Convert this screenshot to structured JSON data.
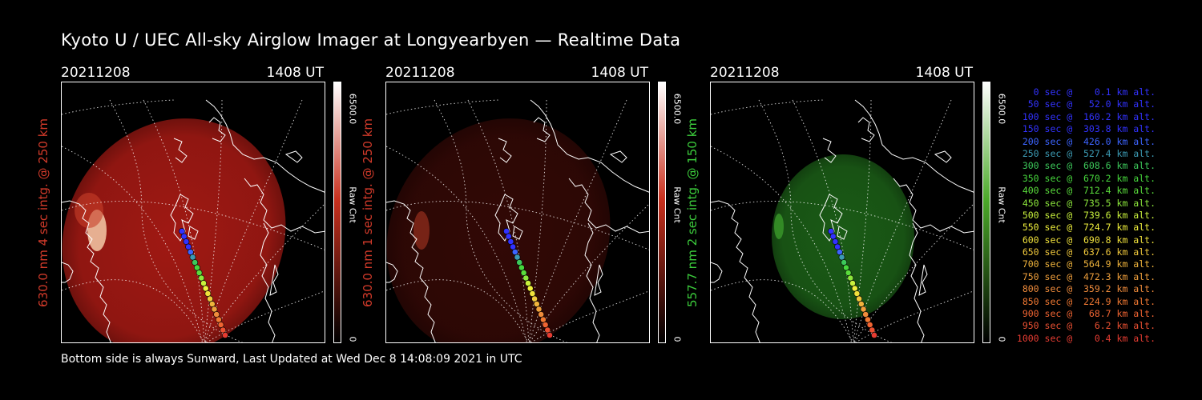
{
  "title": "Kyoto U / UEC All-sky Airglow Imager at Longyearbyen — Realtime Data",
  "footer": "Bottom side is always Sunward, Last Updated at Wed Dec  8 14:08:09 2021 in UTC",
  "panels": [
    {
      "date": "20211208",
      "time": "1408 UT",
      "ylabel": "630.0 nm 4 sec intg. @ 250 km",
      "color": "#d23a2a",
      "cbar_max": "6500.0",
      "cbar_min": "0",
      "cbar_unit": "Raw Cnt",
      "intensity": "strong",
      "glow_color": "#a81a14"
    },
    {
      "date": "20211208",
      "time": "1408 UT",
      "ylabel": "630.0 nm 1 sec intg. @ 250 km",
      "color": "#d23a2a",
      "cbar_max": "6500.0",
      "cbar_min": "0",
      "cbar_unit": "Raw Cnt",
      "intensity": "weak",
      "glow_color": "#5a0f0a"
    },
    {
      "date": "20211208",
      "time": "1408 UT",
      "ylabel": "557.7 nm 2 sec intg. @ 150 km",
      "color": "#3ccd3c",
      "cbar_max": "6500.0",
      "cbar_min": "0",
      "cbar_unit": "Raw Cnt",
      "intensity": "medium",
      "glow_color": "#1f6b1a"
    }
  ],
  "legend": [
    {
      "text": "   0 sec @    0.1 km alt.",
      "color": "#3232ff"
    },
    {
      "text": "  50 sec @   52.0 km alt.",
      "color": "#3232ff"
    },
    {
      "text": " 100 sec @  160.2 km alt.",
      "color": "#3232ff"
    },
    {
      "text": " 150 sec @  303.8 km alt.",
      "color": "#3232ff"
    },
    {
      "text": " 200 sec @  426.0 km alt.",
      "color": "#3c64ff"
    },
    {
      "text": " 250 sec @  527.4 km alt.",
      "color": "#3c9bb4"
    },
    {
      "text": " 300 sec @  608.6 km alt.",
      "color": "#3cc85a"
    },
    {
      "text": " 350 sec @  670.2 km alt.",
      "color": "#46d73c"
    },
    {
      "text": " 400 sec @  712.4 km alt.",
      "color": "#5adc3c"
    },
    {
      "text": " 450 sec @  735.5 km alt.",
      "color": "#8ce63c"
    },
    {
      "text": " 500 sec @  739.6 km alt.",
      "color": "#c8f03c"
    },
    {
      "text": " 550 sec @  724.7 km alt.",
      "color": "#f0f03c"
    },
    {
      "text": " 600 sec @  690.8 km alt.",
      "color": "#f0e13c"
    },
    {
      "text": " 650 sec @  637.6 km alt.",
      "color": "#f0c83c"
    },
    {
      "text": " 700 sec @  564.9 km alt.",
      "color": "#f0b43c"
    },
    {
      "text": " 750 sec @  472.3 km alt.",
      "color": "#f0a03c"
    },
    {
      "text": " 800 sec @  359.2 km alt.",
      "color": "#f08c3c"
    },
    {
      "text": " 850 sec @  224.9 km alt.",
      "color": "#f07832"
    },
    {
      "text": " 900 sec @   68.7 km alt.",
      "color": "#f06432"
    },
    {
      "text": " 950 sec @    6.2 km alt.",
      "color": "#eb5032"
    },
    {
      "text": "1000 sec @    0.4 km alt.",
      "color": "#e63c32"
    }
  ]
}
